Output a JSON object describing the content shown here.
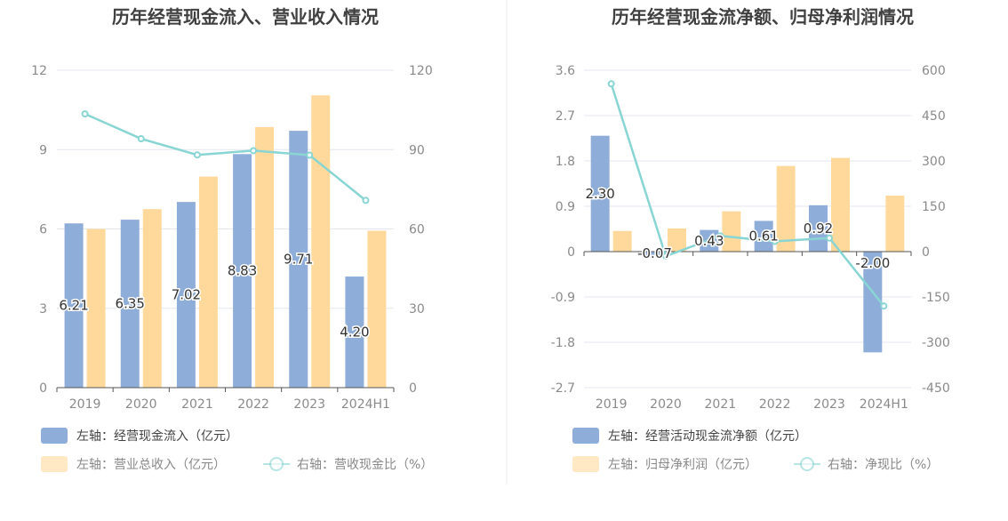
{
  "colors": {
    "blue": "#8fadd9",
    "yellow": "#ffd99b",
    "teal": "#88d5d3",
    "grid": "#e4e7f0",
    "axis_text": "#8a8a8a",
    "title": "#404040",
    "label_text": "#333333"
  },
  "chart_data": [
    {
      "type": "bar",
      "title": "历年经营现金流入、营业收入情况",
      "categories": [
        "2019",
        "2020",
        "2021",
        "2022",
        "2023",
        "2024H1"
      ],
      "y_left": {
        "min": 0,
        "max": 12,
        "ticks": [
          "0",
          "3",
          "6",
          "9",
          "12"
        ]
      },
      "y_right": {
        "min": 0,
        "max": 120,
        "ticks": [
          "0",
          "30",
          "60",
          "90",
          "120"
        ]
      },
      "grid": true,
      "series": [
        {
          "name": "左轴：经营现金流入（亿元）",
          "type": "bar",
          "axis": "left",
          "values": [
            6.21,
            6.35,
            7.02,
            8.83,
            9.71,
            4.2
          ],
          "labels": [
            "6.21",
            "6.35",
            "7.02",
            "8.83",
            "9.71",
            "4.20"
          ]
        },
        {
          "name": "左轴：营业总收入（亿元）",
          "type": "bar",
          "axis": "left",
          "values": [
            6.0,
            6.75,
            7.98,
            9.85,
            11.05,
            5.93
          ]
        },
        {
          "name": "右轴：营收现金比（%）",
          "type": "line",
          "axis": "right",
          "values": [
            103.5,
            94.1,
            88.0,
            89.6,
            87.9,
            70.8
          ]
        }
      ],
      "legend_position": "bottom-left"
    },
    {
      "type": "bar",
      "title": "历年经营现金流净额、归母净利润情况",
      "categories": [
        "2019",
        "2020",
        "2021",
        "2022",
        "2023",
        "2024H1"
      ],
      "y_left": {
        "min": -2.7,
        "max": 3.6,
        "ticks": [
          "-2.7",
          "-1.8",
          "-0.9",
          "0",
          "0.9",
          "1.8",
          "2.7",
          "3.6"
        ]
      },
      "y_right": {
        "min": -450,
        "max": 600,
        "ticks": [
          "-450",
          "-300",
          "-150",
          "0",
          "150",
          "300",
          "450",
          "600"
        ]
      },
      "grid": true,
      "series": [
        {
          "name": "左轴：经营活动现金流净额（亿元）",
          "type": "bar",
          "axis": "left",
          "values": [
            2.3,
            -0.07,
            0.43,
            0.61,
            0.92,
            -2.0
          ],
          "labels": [
            "2.30",
            "-0.07",
            "0.43",
            "0.61",
            "0.92",
            "-2.00"
          ]
        },
        {
          "name": "左轴：归母净利润（亿元）",
          "type": "bar",
          "axis": "left",
          "values": [
            0.41,
            0.46,
            0.8,
            1.7,
            1.86,
            1.11
          ]
        },
        {
          "name": "右轴：净现比（%）",
          "type": "line",
          "axis": "right",
          "values": [
            555,
            -15,
            52,
            34,
            45,
            -180
          ]
        }
      ],
      "legend_position": "bottom-left"
    }
  ]
}
